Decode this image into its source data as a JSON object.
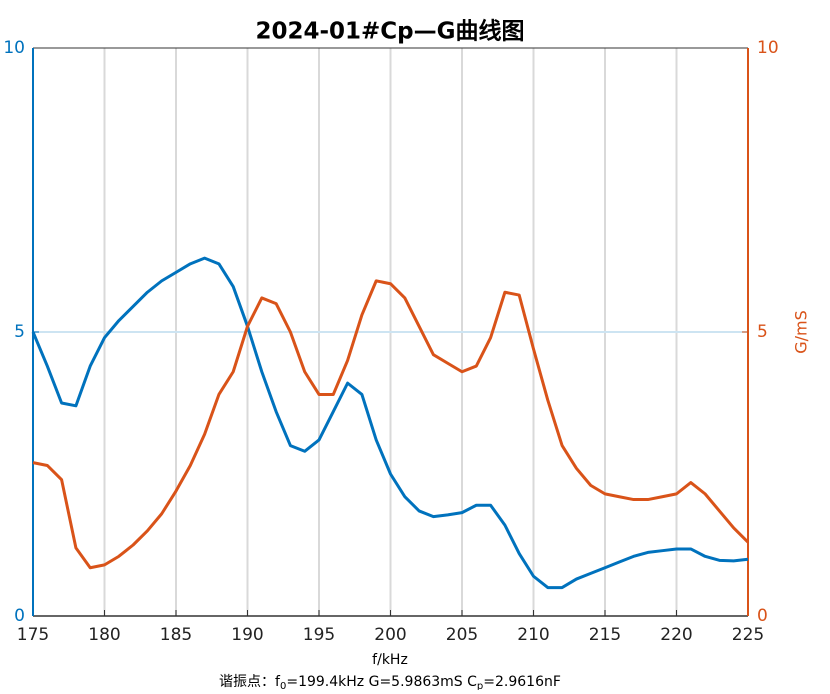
{
  "chart_data": {
    "type": "line",
    "title": "2024-01#Cp—G曲线图",
    "xlabel": "f/kHz",
    "y2label": "G/mS",
    "annotation": [
      "谐振点：f",
      "0",
      "=199.4kHz   G=5.9863mS   C",
      "p",
      "=2.9616nF"
    ],
    "x": [
      175,
      176,
      177,
      178,
      179,
      180,
      181,
      182,
      183,
      184,
      185,
      186,
      187,
      188,
      189,
      190,
      191,
      192,
      193,
      194,
      195,
      196,
      197,
      198,
      199,
      200,
      201,
      202,
      203,
      204,
      205,
      206,
      207,
      208,
      209,
      210,
      211,
      212,
      213,
      214,
      215,
      216,
      217,
      218,
      219,
      220,
      221,
      222,
      223,
      224,
      225
    ],
    "series": [
      {
        "color": "#0072bd",
        "axis": "y",
        "values": [
          5.0,
          4.4,
          3.75,
          3.7,
          4.4,
          4.9,
          5.2,
          5.45,
          5.7,
          5.9,
          6.05,
          6.2,
          6.3,
          6.2,
          5.8,
          5.1,
          4.3,
          3.6,
          3.0,
          2.9,
          3.1,
          3.6,
          4.1,
          3.9,
          3.1,
          2.5,
          2.1,
          1.85,
          1.75,
          1.78,
          1.82,
          1.95,
          1.95,
          1.6,
          1.1,
          0.7,
          0.5,
          0.5,
          0.65,
          0.75,
          0.85,
          0.95,
          1.05,
          1.12,
          1.15,
          1.18,
          1.18,
          1.05,
          0.98,
          0.97,
          1.0
        ]
      },
      {
        "color": "#d95319",
        "axis": "y2",
        "values": [
          2.7,
          2.65,
          2.4,
          1.2,
          0.85,
          0.9,
          1.05,
          1.25,
          1.5,
          1.8,
          2.2,
          2.65,
          3.2,
          3.9,
          4.3,
          5.1,
          5.6,
          5.5,
          5.0,
          4.3,
          3.9,
          3.9,
          4.5,
          5.3,
          5.9,
          5.85,
          5.6,
          5.1,
          4.6,
          4.45,
          4.3,
          4.4,
          4.9,
          5.7,
          5.65,
          4.7,
          3.8,
          3.0,
          2.6,
          2.3,
          2.15,
          2.1,
          2.05,
          2.05,
          2.1,
          2.15,
          2.35,
          2.15,
          1.85,
          1.55,
          1.3
        ]
      }
    ],
    "xlim": [
      175,
      225
    ],
    "xticks": [
      175,
      180,
      185,
      190,
      195,
      200,
      205,
      210,
      215,
      220,
      225
    ],
    "ylim": [
      0,
      10
    ],
    "yticks": [
      0,
      5,
      10
    ],
    "y2lim": [
      0,
      10
    ],
    "y2ticks": [
      0,
      5,
      10
    ],
    "grid": true
  }
}
